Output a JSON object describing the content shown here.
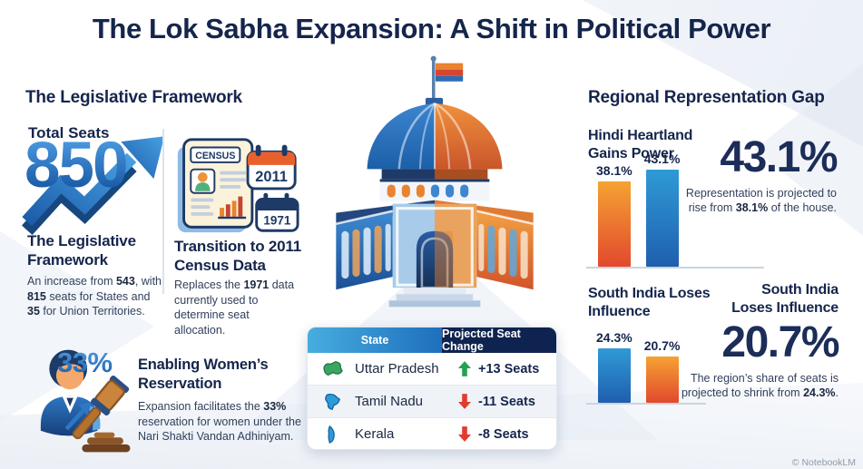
{
  "title": "The Lok Sabha Expansion: A Shift in Political Power",
  "watermark": "© NotebookLM",
  "colors": {
    "navy": "#15254C",
    "blue": "#1F6FBE",
    "light_blue": "#3FA9DC",
    "orange": "#F0923B",
    "red_orange": "#E2492D",
    "green": "#27A053",
    "red": "#E23B2E"
  },
  "legislative": {
    "header": "The Legislative Framework",
    "total_seats_label": "Total Seats",
    "total_seats_value": "850",
    "framework": {
      "heading_line1": "The Legislative",
      "heading_line2": "Framework",
      "body_t1": "An increase from ",
      "body_b1": "543",
      "body_t2": ", with ",
      "body_b2": "815",
      "body_t3": " seats for States and ",
      "body_b3": "35",
      "body_t4": " for Union Territories."
    },
    "census": {
      "doc_label": "CENSUS",
      "calendar_new": "2011",
      "calendar_old": "1971",
      "heading_line1": "Transition to 2011",
      "heading_line2": "Census Data",
      "body_t1": "Replaces the ",
      "body_b1": "1971",
      "body_t2": " data currently used to determine seat allocation."
    }
  },
  "women": {
    "badge": "33%",
    "heading_line1": "Enabling Women’s",
    "heading_line2": "Reservation",
    "body_t1": "Expansion facilitates the ",
    "body_b1": "33%",
    "body_t2": " reservation for women under the Nari Shakti Vandan Adhiniyam."
  },
  "table": {
    "header_state": "State",
    "header_change": "Projected Seat Change",
    "rows": [
      {
        "state": "Uttar Pradesh",
        "change": "+13 Seats",
        "direction": "up"
      },
      {
        "state": "Tamil Nadu",
        "change": "-11 Seats",
        "direction": "down"
      },
      {
        "state": "Kerala",
        "change": "-8 Seats",
        "direction": "down"
      }
    ]
  },
  "regional": {
    "header": "Regional Representation Gap",
    "hindi": {
      "heading_line1": "Hindi Heartland",
      "heading_line2": "Gains Power",
      "bars": [
        {
          "label": "38.1%",
          "value": 38.1,
          "color": "#F0923B"
        },
        {
          "label": "43.1%",
          "value": 43.1,
          "color": "#1F6FBE"
        }
      ],
      "big_value": "43.1%",
      "desc_t1": "Representation is projected to",
      "desc_t2": "rise from ",
      "desc_b1": "38.1%",
      "desc_t3": " of the house."
    },
    "south": {
      "heading_line1": "South India Loses",
      "heading_line2": "Influence",
      "bars": [
        {
          "label": "24.3%",
          "value": 24.3,
          "color": "#1F6FBE"
        },
        {
          "label": "20.7%",
          "value": 20.7,
          "color": "#F0923B"
        }
      ],
      "right_heading_line1": "South India",
      "right_heading_line2": "Loses Influence",
      "big_value": "20.7%",
      "desc_t1": "The region’s share of seats is",
      "desc_t2": "projected to shrink from ",
      "desc_b1": "24.3%",
      "desc_t3": "."
    }
  },
  "chart_data": [
    {
      "type": "bar",
      "title": "Hindi Heartland Gains Power",
      "bar_labels": [
        "38.1%",
        "43.1%"
      ],
      "values": [
        38.1,
        43.1
      ],
      "unit": "%",
      "colors": [
        "#F0923B",
        "#1F6FBE"
      ],
      "ylim": [
        0,
        50
      ],
      "annotation": "Representation is projected to rise from 38.1% of the house."
    },
    {
      "type": "bar",
      "title": "South India Loses Influence",
      "bar_labels": [
        "24.3%",
        "20.7%"
      ],
      "values": [
        24.3,
        20.7
      ],
      "unit": "%",
      "colors": [
        "#1F6FBE",
        "#F0923B"
      ],
      "ylim": [
        0,
        50
      ],
      "annotation": "The region's share of seats is projected to shrink from 24.3%."
    },
    {
      "type": "table",
      "title": "Projected Seat Change",
      "columns": [
        "State",
        "Projected Seat Change"
      ],
      "rows": [
        [
          "Uttar Pradesh",
          "+13 Seats"
        ],
        [
          "Tamil Nadu",
          "-11 Seats"
        ],
        [
          "Kerala",
          "-8 Seats"
        ]
      ]
    }
  ]
}
